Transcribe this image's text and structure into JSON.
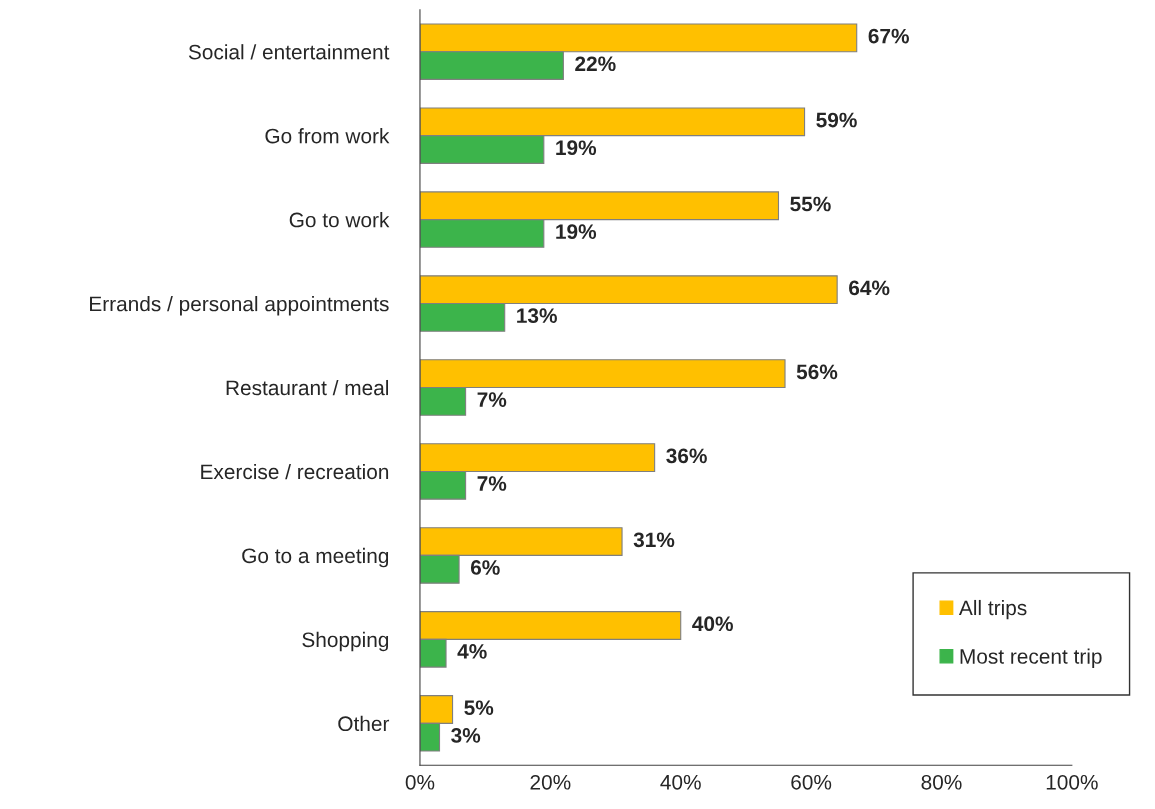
{
  "chart_data": {
    "type": "bar",
    "orientation": "horizontal",
    "categories": [
      "Social / entertainment",
      "Go from work",
      "Go to work",
      "Errands / personal appointments",
      "Restaurant / meal",
      "Exercise / recreation",
      "Go to a meeting",
      "Shopping",
      "Other"
    ],
    "series": [
      {
        "name": "All trips",
        "color": "#ffc000",
        "values": [
          67,
          59,
          55,
          64,
          56,
          36,
          31,
          40,
          5
        ],
        "value_labels": [
          "67%",
          "59%",
          "55%",
          "64%",
          "56%",
          "36%",
          "31%",
          "40%",
          "5%"
        ]
      },
      {
        "name": "Most recent trip",
        "color": "#3cb44b",
        "values": [
          22,
          19,
          19,
          13,
          7,
          7,
          6,
          4,
          3
        ],
        "value_labels": [
          "22%",
          "19%",
          "19%",
          "13%",
          "7%",
          "7%",
          "6%",
          "4%",
          "3%"
        ]
      }
    ],
    "xlim": [
      0,
      100
    ],
    "xticks": [
      {
        "value": 0,
        "label": "0%"
      },
      {
        "value": 20,
        "label": "20%"
      },
      {
        "value": 40,
        "label": "40%"
      },
      {
        "value": 60,
        "label": "60%"
      },
      {
        "value": 80,
        "label": "80%"
      },
      {
        "value": 100,
        "label": "100%"
      }
    ],
    "legend": "bottom right",
    "grid": false
  }
}
